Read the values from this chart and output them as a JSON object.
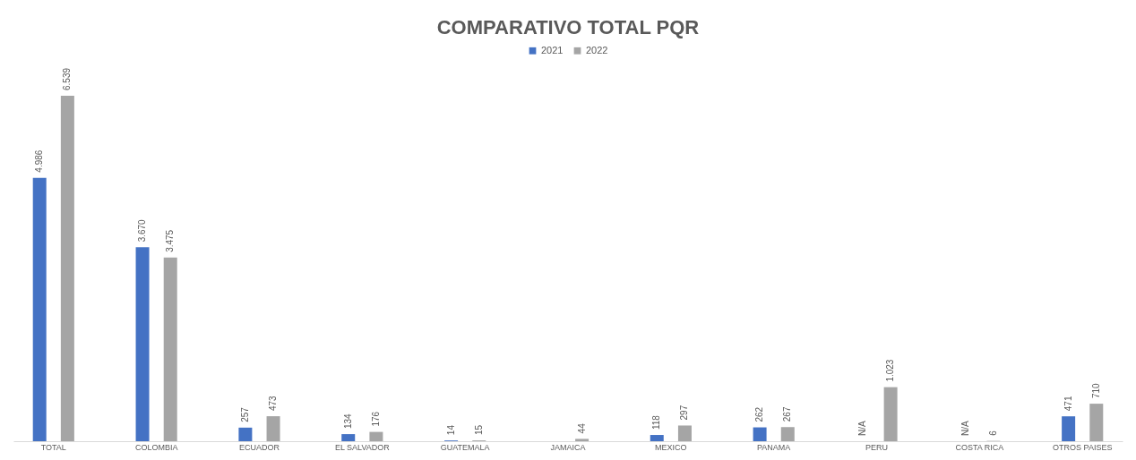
{
  "chart_data": {
    "type": "bar",
    "title": "COMPARATIVO TOTAL PQR",
    "categories": [
      "TOTAL",
      "COLOMBIA",
      "ECUADOR",
      "EL SALVADOR",
      "GUATEMALA",
      "JAMAICA",
      "MEXICO",
      "PANAMA",
      "PERU",
      "COSTA RICA",
      "OTROS PAISES"
    ],
    "series": [
      {
        "name": "2021",
        "color": "#4472c4",
        "values": [
          4986,
          3670,
          257,
          134,
          14,
          null,
          118,
          262,
          null,
          null,
          471
        ],
        "value_labels": [
          "4.986",
          "3.670",
          "257",
          "134",
          "14",
          null,
          "118",
          "262",
          "N/A",
          "N/A",
          "471"
        ]
      },
      {
        "name": "2022",
        "color": "#a5a5a5",
        "values": [
          6539,
          3475,
          473,
          176,
          15,
          44,
          297,
          267,
          1023,
          6,
          710
        ],
        "value_labels": [
          "6.539",
          "3.475",
          "473",
          "176",
          "15",
          "44",
          "297",
          "267",
          "1.023",
          "6",
          "710"
        ]
      }
    ],
    "legend": "top",
    "grid": false
  }
}
